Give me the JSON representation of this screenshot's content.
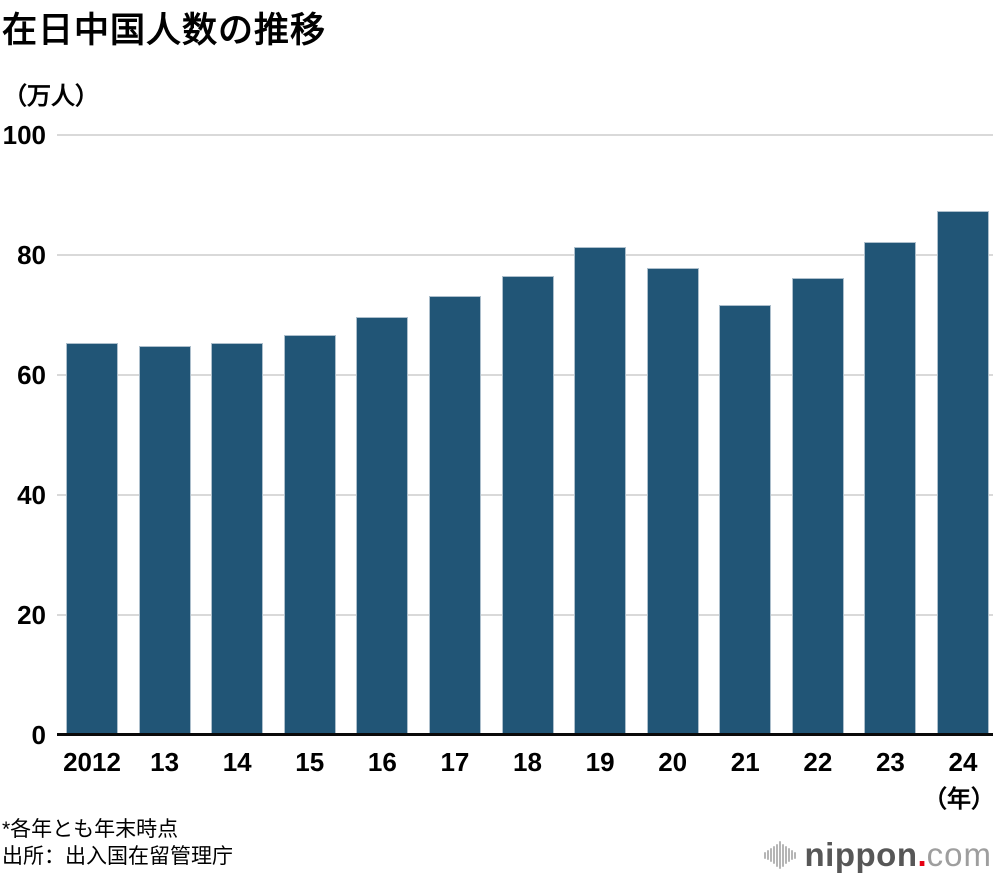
{
  "title": "在日中国人数の推移",
  "y_axis_unit": "（万人）",
  "x_axis_unit": "（年）",
  "chart_data": {
    "type": "bar",
    "title": "在日中国人数の推移",
    "ylabel": "（万人）",
    "xlabel": "（年）",
    "categories": [
      "2012",
      "13",
      "14",
      "15",
      "16",
      "17",
      "18",
      "19",
      "20",
      "21",
      "22",
      "23",
      "24"
    ],
    "values": [
      65.3,
      64.9,
      65.4,
      66.6,
      69.6,
      73.1,
      76.5,
      81.4,
      77.8,
      71.6,
      76.2,
      82.2,
      87.3
    ],
    "ylim": [
      0,
      100
    ],
    "yticks": [
      0,
      20,
      40,
      60,
      80,
      100
    ],
    "bar_color": "#215576",
    "gridline_color": "#d9d9d9",
    "grid": true,
    "legend": false
  },
  "footnotes": {
    "note": "*各年とも年末時点",
    "source": "出所：出入国在留管理庁"
  },
  "logo": {
    "icon": "soundwave-bars-icon",
    "name_bold": "nippon",
    "dot": ".",
    "name_light": "com",
    "dot_color": "#e60012"
  }
}
